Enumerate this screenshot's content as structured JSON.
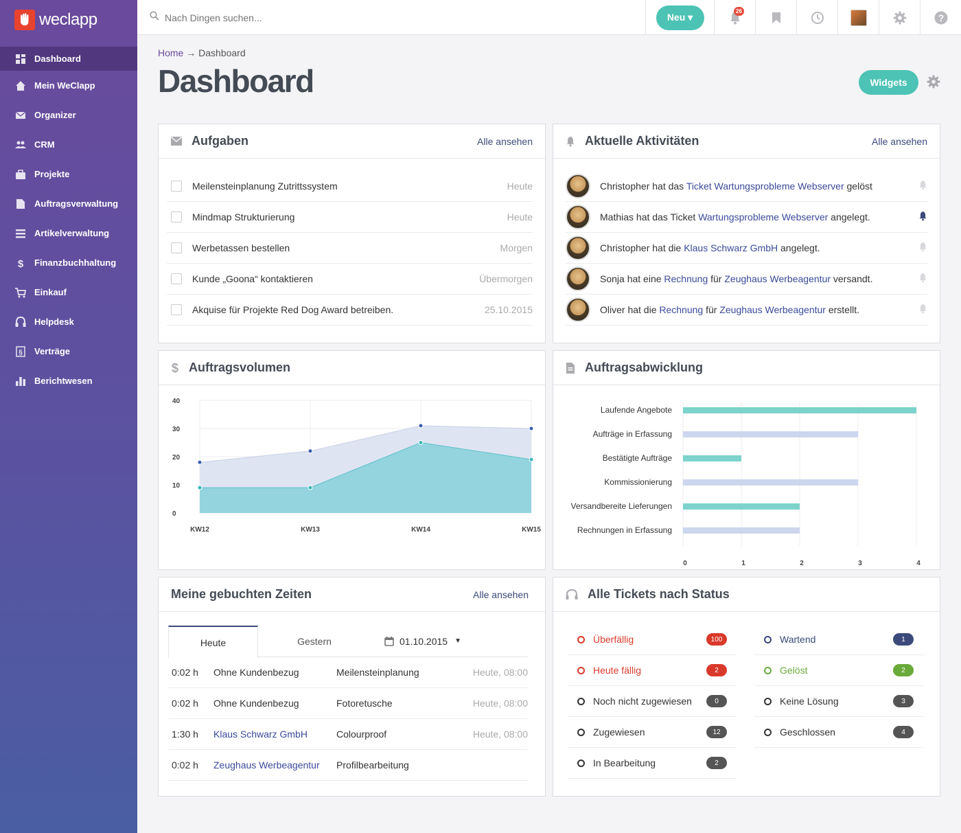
{
  "app": {
    "name": "weclapp"
  },
  "sidebar": {
    "items": [
      {
        "label": "Dashboard",
        "icon": "dashboard-icon"
      },
      {
        "label": "Mein WeClapp",
        "icon": "home-icon"
      },
      {
        "label": "Organizer",
        "icon": "mail-icon"
      },
      {
        "label": "CRM",
        "icon": "people-icon"
      },
      {
        "label": "Projekte",
        "icon": "briefcase-icon"
      },
      {
        "label": "Auftragsverwaltung",
        "icon": "document-icon"
      },
      {
        "label": "Artikelverwaltung",
        "icon": "list-icon"
      },
      {
        "label": "Finanzbuchhaltung",
        "icon": "dollar-icon"
      },
      {
        "label": "Einkauf",
        "icon": "cart-icon"
      },
      {
        "label": "Helpdesk",
        "icon": "headset-icon"
      },
      {
        "label": "Verträge",
        "icon": "contract-icon"
      },
      {
        "label": "Berichtwesen",
        "icon": "bar-chart-icon"
      }
    ]
  },
  "topbar": {
    "search_placeholder": "Nach Dingen suchen...",
    "new_label": "Neu ▾",
    "notification_count": "26"
  },
  "page": {
    "breadcrumb_home": "Home",
    "breadcrumb_sep": "→",
    "breadcrumb_current": "Dashboard",
    "title": "Dashboard",
    "widgets_label": "Widgets"
  },
  "tasks": {
    "title": "Aufgaben",
    "link": "Alle ansehen",
    "items": [
      {
        "label": "Meilensteinplanung Zutrittssystem",
        "date": "Heute"
      },
      {
        "label": "Mindmap Strukturierung",
        "date": "Heute"
      },
      {
        "label": "Werbetassen bestellen",
        "date": "Morgen"
      },
      {
        "label": "Kunde „Goona“ kontaktieren",
        "date": "Übermorgen"
      },
      {
        "label": "Akquise für Projekte Red Dog Award betreiben.",
        "date": "25.10.2015"
      }
    ]
  },
  "activities": {
    "title": "Aktuelle Aktivitäten",
    "link": "Alle ansehen",
    "items": [
      {
        "t1": "Christopher hat das ",
        "l1": "Ticket Wartungsprobleme Webserver",
        "t2": " gelöst",
        "l2": "",
        "t3": ""
      },
      {
        "t1": "Mathias hat das Ticket ",
        "l1": "Wartungsprobleme Webserver",
        "t2": " angelegt.",
        "l2": "",
        "t3": ""
      },
      {
        "t1": "Christopher hat die ",
        "l1": "Klaus Schwarz GmbH",
        "t2": " angelegt.",
        "l2": "",
        "t3": ""
      },
      {
        "t1": "Sonja hat eine ",
        "l1": "Rechnung",
        "t2": " für ",
        "l2": "Zeughaus Werbeagentur",
        "t3": " versandt."
      },
      {
        "t1": "Oliver hat die ",
        "l1": "Rechnung",
        "t2": " für ",
        "l2": "Zeughaus Werbeagentur",
        "t3": " erstellt."
      }
    ]
  },
  "volume": {
    "title": "Auftragsvolumen"
  },
  "processing": {
    "title": "Auftragsabwicklung"
  },
  "times": {
    "title": "Meine gebuchten Zeiten",
    "link": "Alle ansehen",
    "tab_today": "Heute",
    "tab_yesterday": "Gestern",
    "date": "01.10.2015",
    "rows": [
      {
        "dur": "0:02 h",
        "customer": "Ohne Kundenbezug",
        "task": "Meilensteinplanung",
        "when": "Heute, 08:00"
      },
      {
        "dur": "0:02 h",
        "customer": "Ohne Kundenbezug",
        "task": "Fotoretusche",
        "when": "Heute, 08:00"
      },
      {
        "dur": "1:30 h",
        "customer": "Klaus Schwarz GmbH",
        "task": "Colourproof",
        "when": "Heute, 08:00"
      },
      {
        "dur": "0:02 h",
        "customer": "Zeughaus Werbeagentur",
        "task": "Profilbearbeitung",
        "when": ""
      }
    ]
  },
  "tickets": {
    "title": "Alle Tickets nach Status",
    "left": [
      {
        "label": "Überfällig",
        "count": "100",
        "color": "#d9392b",
        "badge": "#d9392b"
      },
      {
        "label": "Heute fällig",
        "count": "2",
        "color": "#d9392b",
        "badge": "#d9392b"
      },
      {
        "label": "Noch nicht zugewiesen",
        "count": "0",
        "color": "#333333",
        "badge": "#555555"
      },
      {
        "label": "Zugewiesen",
        "count": "12",
        "color": "#333333",
        "badge": "#555555"
      },
      {
        "label": "In Bearbeitung",
        "count": "2",
        "color": "#333333",
        "badge": "#555555"
      }
    ],
    "right": [
      {
        "label": "Wartend",
        "count": "1",
        "color": "#3b4a7a",
        "badge": "#3b4a7a"
      },
      {
        "label": "Gelöst",
        "count": "2",
        "color": "#6aaa3a",
        "badge": "#6aaa3a"
      },
      {
        "label": "Keine Lösung",
        "count": "3",
        "color": "#333333",
        "badge": "#555555"
      },
      {
        "label": "Geschlossen",
        "count": "4",
        "color": "#333333",
        "badge": "#555555"
      }
    ]
  },
  "chart_data": [
    {
      "type": "area",
      "categories": [
        "KW12",
        "KW13",
        "KW14",
        "KW15"
      ],
      "series": [
        {
          "values": [
            18,
            22,
            31,
            30
          ],
          "color": "#dfe4f2",
          "point": "#3b5fb0"
        },
        {
          "values": [
            9,
            9,
            25,
            19
          ],
          "color": "#8ed3dc",
          "point": "#3bb8b8"
        }
      ],
      "ylim": [
        0,
        40
      ],
      "yticks": [
        "0",
        "10",
        "20",
        "30",
        "40"
      ]
    },
    {
      "type": "bar",
      "categories": [
        "Laufende Angebote",
        "Aufträge in Erfassung",
        "Bestätigte Aufträge",
        "Kommissionierung",
        "Versandbereite Lieferungen",
        "Rechnungen in Erfassung"
      ],
      "values": [
        4,
        3,
        1,
        3,
        2,
        2
      ],
      "colors": [
        "#7dd3cb",
        "#ccd6ee",
        "#7dd3cb",
        "#ccd6ee",
        "#7dd3cb",
        "#ccd6ee"
      ],
      "xlim": [
        0,
        4
      ],
      "xticks": [
        "0",
        "1",
        "2",
        "3",
        "4"
      ]
    }
  ]
}
